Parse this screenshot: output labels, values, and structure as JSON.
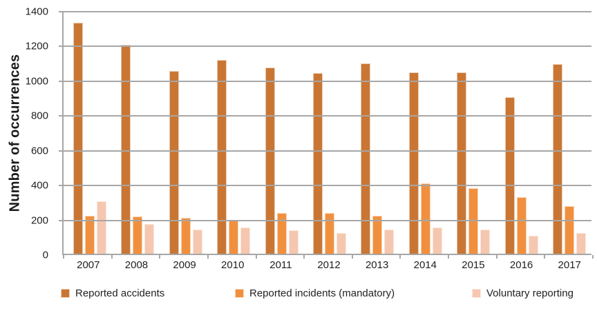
{
  "chart_data": {
    "type": "bar",
    "title": "",
    "xlabel": "",
    "ylabel": "Number of occurrences",
    "ylim": [
      0,
      1400
    ],
    "ytick_step": 200,
    "yticks": [
      0,
      200,
      400,
      600,
      800,
      1000,
      1200,
      1400
    ],
    "grid": true,
    "legend_position": "bottom",
    "categories": [
      "2007",
      "2008",
      "2009",
      "2010",
      "2011",
      "2012",
      "2013",
      "2014",
      "2015",
      "2016",
      "2017"
    ],
    "series": [
      {
        "name": "Reported accidents",
        "color": "#c97634",
        "values": [
          1330,
          1200,
          1050,
          1115,
          1070,
          1040,
          1095,
          1045,
          1045,
          900,
          1090
        ]
      },
      {
        "name": "Reported incidents (mandatory)",
        "color": "#f0903f",
        "values": [
          220,
          215,
          205,
          190,
          235,
          235,
          220,
          405,
          375,
          325,
          275
        ]
      },
      {
        "name": "Voluntary reporting",
        "color": "#f5c7b0",
        "values": [
          300,
          170,
          140,
          150,
          135,
          120,
          140,
          150,
          140,
          105,
          120
        ]
      }
    ],
    "colors": {
      "gridline": "#a6a6a6",
      "axis": "#a6a6a6",
      "text": "#1f1f1f"
    }
  }
}
